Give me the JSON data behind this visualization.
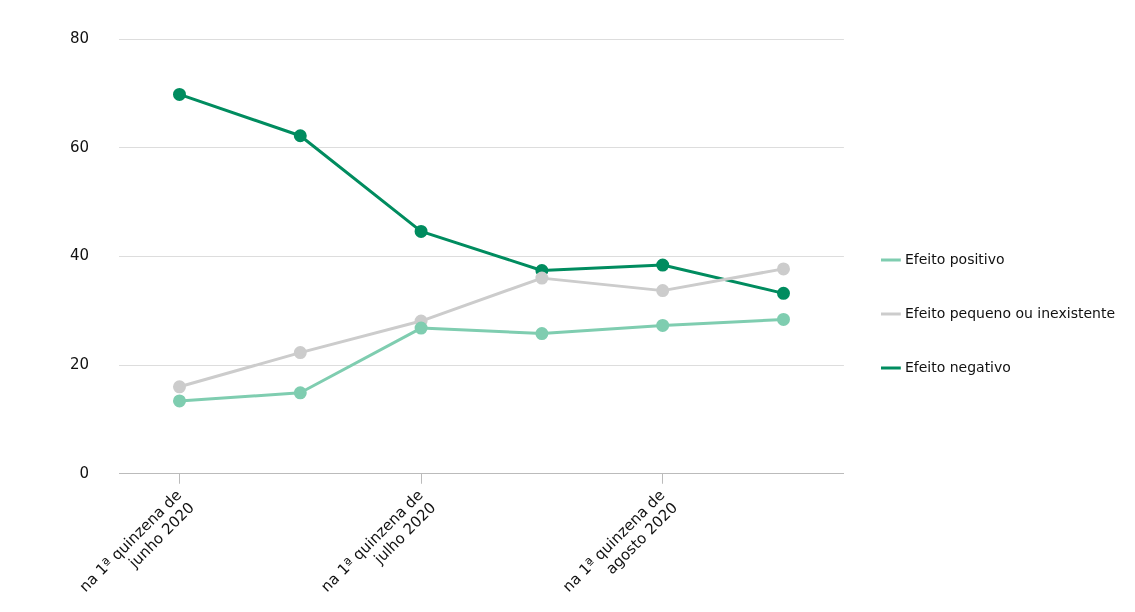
{
  "chart_data": {
    "type": "line",
    "categories": [
      "na 1ª quinzena de\njunho 2020",
      null,
      "na 1ª quinzena de\njulho 2020",
      null,
      "na 1ª quinzena de\nagosto 2020",
      null
    ],
    "series": [
      {
        "name": "Efeito positivo",
        "color": "#7fcdb0",
        "values": [
          13.4,
          14.9,
          26.8,
          25.8,
          27.3,
          28.4
        ]
      },
      {
        "name": "Efeito pequeno ou inexistente",
        "color": "#cccccc",
        "values": [
          16.0,
          22.3,
          28.1,
          36.0,
          33.7,
          37.7
        ]
      },
      {
        "name": "Efeito negativo",
        "color": "#008c5f",
        "values": [
          69.8,
          62.2,
          44.6,
          37.4,
          38.4,
          33.2
        ]
      }
    ],
    "ylim": [
      0,
      80
    ],
    "yticks": [
      0,
      20,
      40,
      60,
      80
    ],
    "grid": "y",
    "legend": "right",
    "marker": "circle",
    "line_style": "solid"
  }
}
